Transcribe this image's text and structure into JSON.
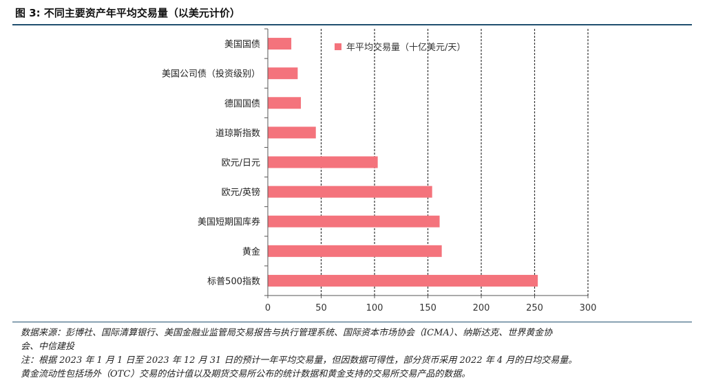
{
  "figure": {
    "title": "图 3: 不同主要资产年平均交易量（以美元计价）"
  },
  "chart_data": {
    "type": "bar",
    "orientation": "horizontal",
    "categories": [
      "美国国债",
      "美国公司债（投资级别）",
      "德国国债",
      "道琼斯指数",
      "欧元/日元",
      "欧元/英镑",
      "美国短期国库券",
      "黄金",
      "标普500指数"
    ],
    "series": [
      {
        "name": "年平均交易量（十亿美元/天）",
        "values": [
          22,
          28,
          31,
          45,
          103,
          154,
          161,
          163,
          253
        ],
        "color": "#f4737c"
      }
    ],
    "xlim": [
      0,
      300
    ],
    "xticks": [
      0,
      50,
      100,
      150,
      200,
      250,
      300
    ],
    "xlabel": "",
    "ylabel": "",
    "grid": "vertical-dashed",
    "legend_position": "top-right"
  },
  "notes": {
    "source_line1": "数据来源：彭博社、国际清算银行、美国金融业监管局交易报告与执行管理系统、国际资本市场协会（ICMA）、纳斯达克、世界黄金协",
    "source_line2": "会、中信建投",
    "note_line1": "注：根据 2023 年 1 月 1 日至 2023 年 12 月 31 日的预计一年平均交易量，但因数据可得性，部分货币采用 2022 年 4 月的日均交易量。",
    "note_line2": "黄金流动性包括场外（OTC）交易的估计值以及期货交易所公布的统计数据和黄金支持的交易所交易产品的数据。"
  }
}
